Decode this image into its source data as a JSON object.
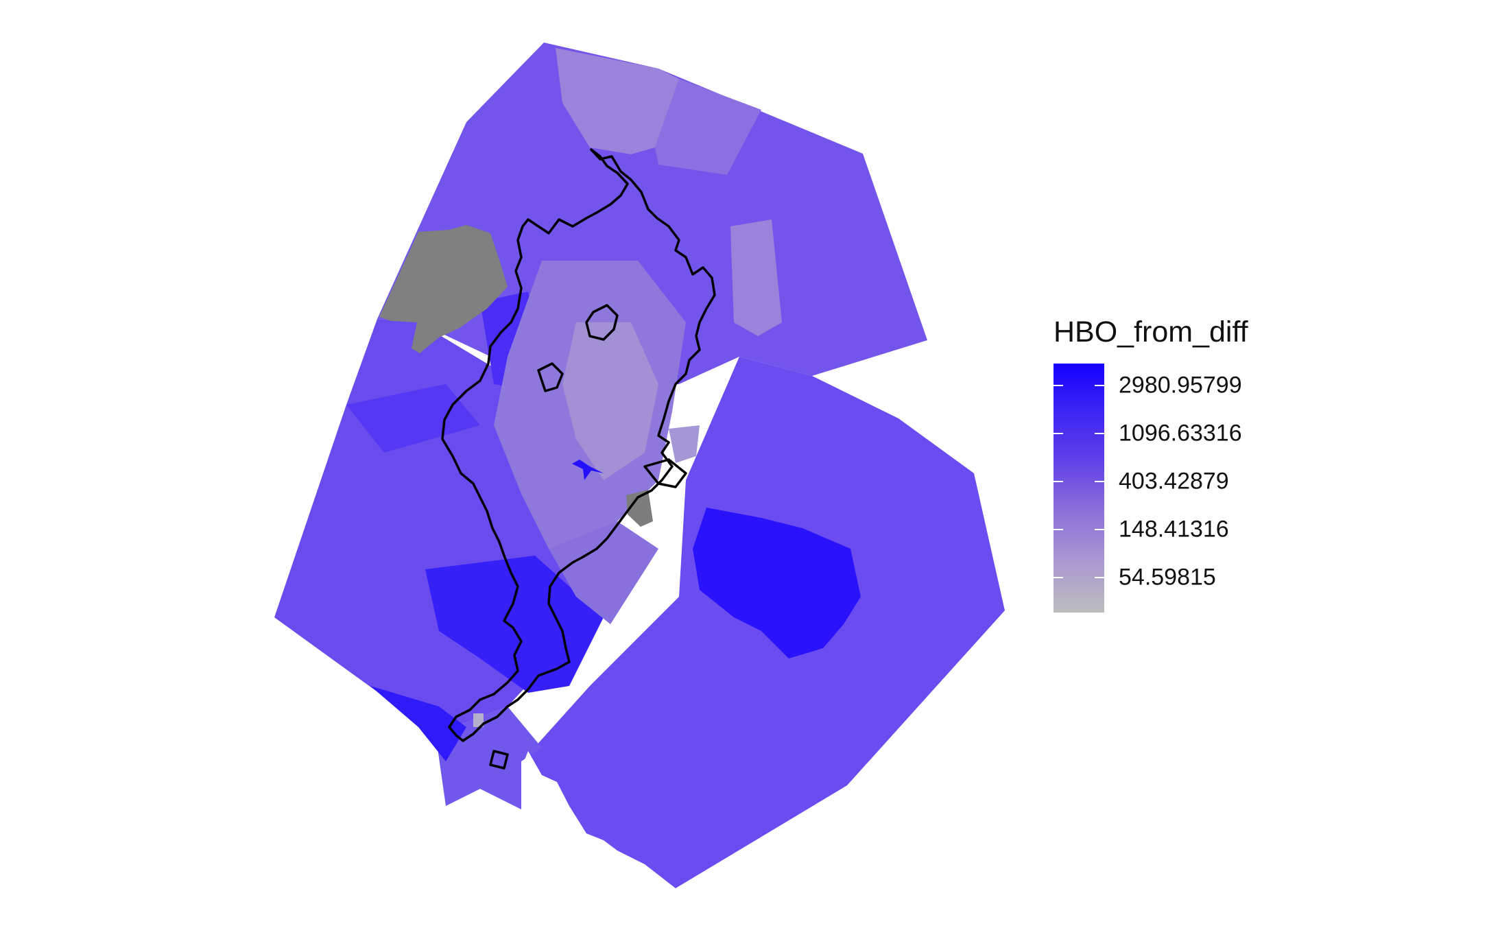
{
  "legend": {
    "title": "HBO_from_diff",
    "gradient_colors": [
      "#1400ff",
      "#3a24f4",
      "#5e3fe8",
      "#8a6dd9",
      "#a896d2",
      "#bdbdbd"
    ],
    "breaks": [
      {
        "label": "2980.95799",
        "value": 2980.95799
      },
      {
        "label": "1096.63316",
        "value": 1096.63316
      },
      {
        "label": "403.42879",
        "value": 403.42879
      },
      {
        "label": "148.41316",
        "value": 148.41316
      },
      {
        "label": "54.59815",
        "value": 54.59815
      }
    ]
  },
  "map": {
    "base_color": "#7355eb",
    "missing_color": "#808080",
    "outline_color": "#000000"
  }
}
